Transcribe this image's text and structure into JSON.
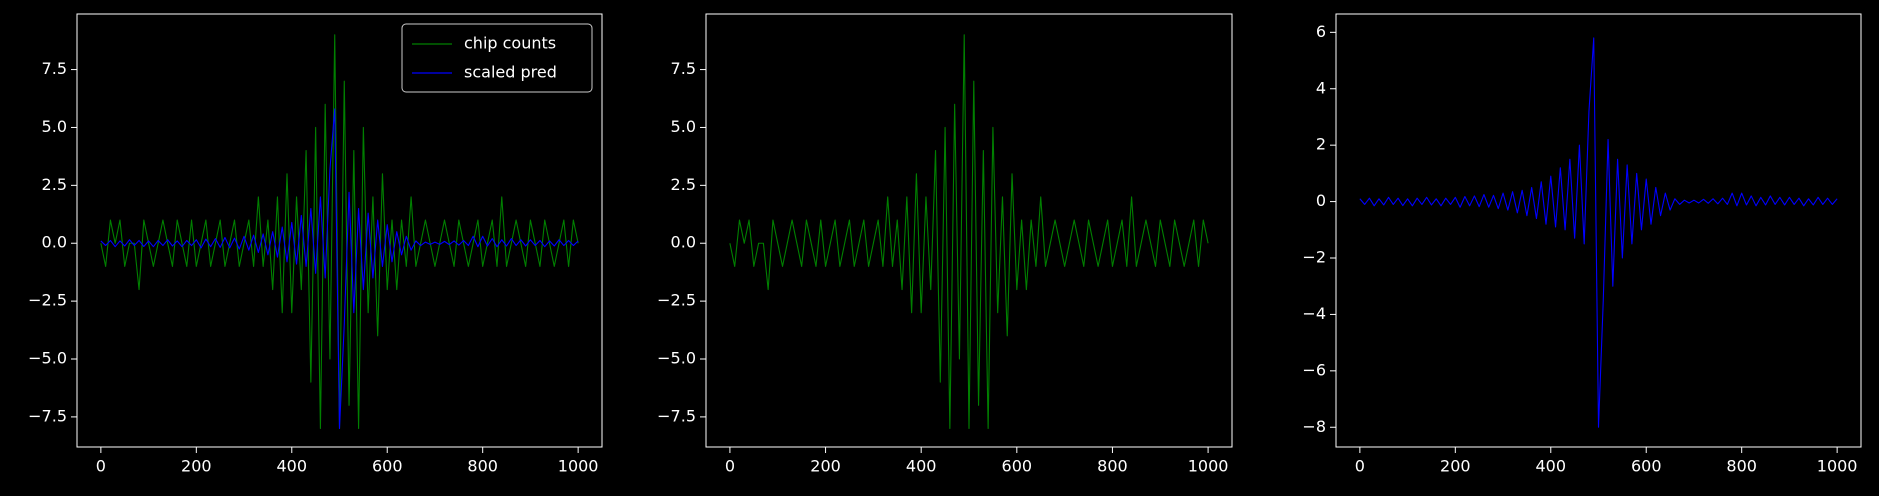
{
  "chart_data": [
    {
      "type": "line",
      "x": [
        0,
        10,
        20,
        30,
        40,
        50,
        60,
        70,
        80,
        90,
        100,
        110,
        120,
        130,
        140,
        150,
        160,
        170,
        180,
        190,
        200,
        210,
        220,
        230,
        240,
        250,
        260,
        270,
        280,
        290,
        300,
        310,
        320,
        330,
        340,
        350,
        360,
        370,
        380,
        390,
        400,
        410,
        420,
        430,
        440,
        450,
        460,
        470,
        480,
        490,
        500,
        510,
        520,
        530,
        540,
        550,
        560,
        570,
        580,
        590,
        600,
        610,
        620,
        630,
        640,
        650,
        660,
        670,
        680,
        690,
        700,
        710,
        720,
        730,
        740,
        750,
        760,
        770,
        780,
        790,
        800,
        810,
        820,
        830,
        840,
        850,
        860,
        870,
        880,
        890,
        900,
        910,
        920,
        930,
        940,
        950,
        960,
        970,
        980,
        990,
        1000
      ],
      "series": [
        {
          "name": "chip counts",
          "color": "#008000",
          "values": [
            0,
            -1,
            1,
            0,
            1,
            -1,
            0,
            0,
            -2,
            1,
            0,
            -1,
            0,
            1,
            0,
            -1,
            1,
            0,
            -1,
            1,
            -1,
            0,
            1,
            -1,
            0,
            1,
            -1,
            0,
            1,
            -1,
            0,
            1,
            -1,
            2,
            -1,
            1,
            -2,
            2,
            -3,
            3,
            -3,
            2,
            -2,
            4,
            -6,
            5,
            -8,
            6,
            -5,
            9,
            -8,
            7,
            -7,
            4,
            -8,
            5,
            -3,
            2,
            -4,
            3,
            -2,
            1,
            -2,
            1,
            -1,
            2,
            -1,
            0,
            1,
            0,
            -1,
            0,
            1,
            0,
            -1,
            1,
            0,
            -1,
            0,
            1,
            -1,
            0,
            1,
            -1,
            2,
            -1,
            0,
            1,
            0,
            -1,
            1,
            0,
            -1,
            1,
            0,
            -1,
            0,
            1,
            -1,
            1,
            0
          ]
        },
        {
          "name": "scaled pred",
          "color": "#0000ff",
          "values": [
            0.1,
            -0.1,
            0.12,
            -0.15,
            0.1,
            -0.12,
            0.15,
            -0.1,
            0.12,
            -0.14,
            0.1,
            -0.15,
            0.12,
            -0.1,
            0.15,
            -0.12,
            0.1,
            -0.15,
            0.12,
            -0.1,
            0.15,
            -0.2,
            0.18,
            -0.15,
            0.2,
            -0.18,
            0.25,
            -0.2,
            0.22,
            -0.25,
            0.3,
            -0.3,
            0.35,
            -0.4,
            0.4,
            -0.5,
            0.5,
            -0.6,
            0.7,
            -0.8,
            0.9,
            -0.9,
            1.2,
            -1.0,
            1.5,
            -1.3,
            2.0,
            -1.5,
            3.2,
            5.8,
            -8.0,
            -3.5,
            2.2,
            -3.0,
            1.5,
            -2.0,
            1.3,
            -1.5,
            1.0,
            -1.0,
            0.8,
            -0.8,
            0.5,
            -0.5,
            0.3,
            -0.3,
            0.1,
            -0.1,
            0.05,
            -0.05,
            0.05,
            -0.05,
            0.08,
            -0.06,
            0.1,
            -0.08,
            0.12,
            -0.1,
            0.3,
            -0.15,
            0.3,
            -0.12,
            0.2,
            -0.15,
            0.15,
            -0.12,
            0.2,
            -0.1,
            0.15,
            -0.12,
            0.15,
            -0.1,
            0.12,
            -0.15,
            0.1,
            -0.12,
            0.15,
            -0.1,
            0.12,
            -0.1,
            0.1
          ]
        }
      ],
      "xlim": [
        -50,
        1050
      ],
      "xticks": [
        0,
        200,
        400,
        600,
        800,
        1000
      ],
      "ylim": [
        -8.8,
        9.9
      ],
      "yticks": [
        {
          "value": -7.5,
          "label": "−7.5"
        },
        {
          "value": -5,
          "label": "−5.0"
        },
        {
          "value": -2.5,
          "label": "−2.5"
        },
        {
          "value": 0,
          "label": "0.0"
        },
        {
          "value": 2.5,
          "label": "2.5"
        },
        {
          "value": 5,
          "label": "5.0"
        },
        {
          "value": 7.5,
          "label": "7.5"
        }
      ],
      "legend": "upper right"
    },
    {
      "type": "line",
      "x": [
        0,
        10,
        20,
        30,
        40,
        50,
        60,
        70,
        80,
        90,
        100,
        110,
        120,
        130,
        140,
        150,
        160,
        170,
        180,
        190,
        200,
        210,
        220,
        230,
        240,
        250,
        260,
        270,
        280,
        290,
        300,
        310,
        320,
        330,
        340,
        350,
        360,
        370,
        380,
        390,
        400,
        410,
        420,
        430,
        440,
        450,
        460,
        470,
        480,
        490,
        500,
        510,
        520,
        530,
        540,
        550,
        560,
        570,
        580,
        590,
        600,
        610,
        620,
        630,
        640,
        650,
        660,
        670,
        680,
        690,
        700,
        710,
        720,
        730,
        740,
        750,
        760,
        770,
        780,
        790,
        800,
        810,
        820,
        830,
        840,
        850,
        860,
        870,
        880,
        890,
        900,
        910,
        920,
        930,
        940,
        950,
        960,
        970,
        980,
        990,
        1000
      ],
      "series": [
        {
          "color": "#008000",
          "values": [
            0,
            -1,
            1,
            0,
            1,
            -1,
            0,
            0,
            -2,
            1,
            0,
            -1,
            0,
            1,
            0,
            -1,
            1,
            0,
            -1,
            1,
            -1,
            0,
            1,
            -1,
            0,
            1,
            -1,
            0,
            1,
            -1,
            0,
            1,
            -1,
            2,
            -1,
            1,
            -2,
            2,
            -3,
            3,
            -3,
            2,
            -2,
            4,
            -6,
            5,
            -8,
            6,
            -5,
            9,
            -8,
            7,
            -7,
            4,
            -8,
            5,
            -3,
            2,
            -4,
            3,
            -2,
            1,
            -2,
            1,
            -1,
            2,
            -1,
            0,
            1,
            0,
            -1,
            0,
            1,
            0,
            -1,
            1,
            0,
            -1,
            0,
            1,
            -1,
            0,
            1,
            -1,
            2,
            -1,
            0,
            1,
            0,
            -1,
            1,
            0,
            -1,
            1,
            0,
            -1,
            0,
            1,
            -1,
            1,
            0
          ]
        }
      ],
      "xlim": [
        -50,
        1050
      ],
      "xticks": [
        0,
        200,
        400,
        600,
        800,
        1000
      ],
      "ylim": [
        -8.8,
        9.9
      ],
      "yticks": [
        {
          "value": -7.5,
          "label": "−7.5"
        },
        {
          "value": -5,
          "label": "−5.0"
        },
        {
          "value": -2.5,
          "label": "−2.5"
        },
        {
          "value": 0,
          "label": "0.0"
        },
        {
          "value": 2.5,
          "label": "2.5"
        },
        {
          "value": 5,
          "label": "5.0"
        },
        {
          "value": 7.5,
          "label": "7.5"
        }
      ]
    },
    {
      "type": "line",
      "x": [
        0,
        10,
        20,
        30,
        40,
        50,
        60,
        70,
        80,
        90,
        100,
        110,
        120,
        130,
        140,
        150,
        160,
        170,
        180,
        190,
        200,
        210,
        220,
        230,
        240,
        250,
        260,
        270,
        280,
        290,
        300,
        310,
        320,
        330,
        340,
        350,
        360,
        370,
        380,
        390,
        400,
        410,
        420,
        430,
        440,
        450,
        460,
        470,
        480,
        490,
        500,
        510,
        520,
        530,
        540,
        550,
        560,
        570,
        580,
        590,
        600,
        610,
        620,
        630,
        640,
        650,
        660,
        670,
        680,
        690,
        700,
        710,
        720,
        730,
        740,
        750,
        760,
        770,
        780,
        790,
        800,
        810,
        820,
        830,
        840,
        850,
        860,
        870,
        880,
        890,
        900,
        910,
        920,
        930,
        940,
        950,
        960,
        970,
        980,
        990,
        1000
      ],
      "series": [
        {
          "color": "#0000ff",
          "values": [
            0.1,
            -0.1,
            0.12,
            -0.15,
            0.1,
            -0.12,
            0.15,
            -0.1,
            0.12,
            -0.14,
            0.1,
            -0.15,
            0.12,
            -0.1,
            0.15,
            -0.12,
            0.1,
            -0.15,
            0.12,
            -0.1,
            0.15,
            -0.2,
            0.18,
            -0.15,
            0.2,
            -0.18,
            0.25,
            -0.2,
            0.22,
            -0.25,
            0.3,
            -0.3,
            0.35,
            -0.4,
            0.4,
            -0.5,
            0.5,
            -0.6,
            0.7,
            -0.8,
            0.9,
            -0.9,
            1.2,
            -1.0,
            1.5,
            -1.3,
            2.0,
            -1.5,
            3.2,
            5.8,
            -8.0,
            -3.5,
            2.2,
            -3.0,
            1.5,
            -2.0,
            1.3,
            -1.5,
            1.0,
            -1.0,
            0.8,
            -0.8,
            0.5,
            -0.5,
            0.3,
            -0.3,
            0.1,
            -0.1,
            0.05,
            -0.05,
            0.05,
            -0.05,
            0.08,
            -0.06,
            0.1,
            -0.08,
            0.12,
            -0.1,
            0.3,
            -0.15,
            0.3,
            -0.12,
            0.2,
            -0.15,
            0.15,
            -0.12,
            0.2,
            -0.1,
            0.15,
            -0.12,
            0.15,
            -0.1,
            0.12,
            -0.15,
            0.1,
            -0.12,
            0.15,
            -0.1,
            0.12,
            -0.1,
            0.1
          ]
        }
      ],
      "xlim": [
        -50,
        1050
      ],
      "xticks": [
        0,
        200,
        400,
        600,
        800,
        1000
      ],
      "ylim": [
        -8.7,
        6.65
      ],
      "yticks": [
        {
          "value": -8,
          "label": "−8"
        },
        {
          "value": -6,
          "label": "−6"
        },
        {
          "value": -4,
          "label": "−4"
        },
        {
          "value": -2,
          "label": "−2"
        },
        0,
        2,
        4,
        6
      ]
    }
  ]
}
